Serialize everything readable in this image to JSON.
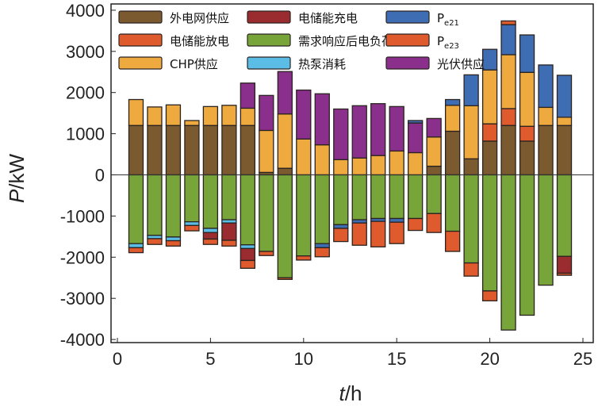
{
  "chart_data": {
    "type": "bar",
    "stacked": true,
    "xlabel": {
      "var": "t",
      "unit": "/h"
    },
    "ylabel": {
      "var": "P",
      "unit": "/kW"
    },
    "xlim": [
      0,
      25
    ],
    "ylim": [
      -4000,
      4000
    ],
    "xticks": [
      0,
      5,
      10,
      15,
      20,
      25
    ],
    "yticks": [
      -4000,
      -3000,
      -2000,
      -1000,
      0,
      1000,
      2000,
      3000,
      4000
    ],
    "grid": false,
    "legend_position": "top",
    "categories": [
      1,
      2,
      3,
      4,
      5,
      6,
      7,
      8,
      9,
      10,
      11,
      12,
      13,
      14,
      15,
      16,
      17,
      18,
      19,
      20,
      21,
      22,
      23,
      24
    ],
    "series": [
      {
        "name": "外电网供应",
        "color": "#7b5a2f",
        "values": [
          1200,
          1200,
          1200,
          1200,
          1200,
          1200,
          1200,
          60,
          160,
          0,
          0,
          0,
          0,
          0,
          0,
          0,
          210,
          1060,
          390,
          820,
          1200,
          820,
          1200,
          1200
        ]
      },
      {
        "name": "电储能放电",
        "color": "#df5a2c",
        "values": [
          0,
          0,
          0,
          0,
          0,
          0,
          0,
          0,
          0,
          0,
          0,
          0,
          0,
          0,
          0,
          0,
          0,
          0,
          0,
          420,
          410,
          360,
          0,
          0
        ]
      },
      {
        "name": "CHP供应",
        "color": "#eea93f",
        "values": [
          630,
          450,
          500,
          120,
          460,
          490,
          420,
          1020,
          1320,
          870,
          730,
          370,
          410,
          470,
          580,
          540,
          710,
          630,
          1290,
          1310,
          1310,
          1310,
          440,
          200
        ]
      },
      {
        "name": "光伏供应",
        "color": "#8b2f8c",
        "values": [
          0,
          0,
          0,
          0,
          0,
          0,
          610,
          850,
          1030,
          1190,
          1240,
          1230,
          1270,
          1260,
          1080,
          720,
          450,
          0,
          0,
          0,
          0,
          0,
          0,
          0
        ]
      },
      {
        "name": "电储能充电",
        "color": "#9a2b2e",
        "values": [
          0,
          0,
          0,
          0,
          -160,
          -420,
          -290,
          0,
          0,
          0,
          0,
          0,
          0,
          0,
          0,
          0,
          0,
          0,
          0,
          0,
          0,
          0,
          0,
          -410
        ]
      },
      {
        "name": "需求响应后电负荷",
        "color": "#78a53a",
        "values": [
          -1670,
          -1470,
          -1510,
          -1140,
          -1300,
          -1090,
          -1700,
          -1860,
          -2500,
          -1970,
          -1670,
          -1210,
          -1090,
          -1060,
          -1060,
          -1060,
          -940,
          -1370,
          -2140,
          -2820,
          -3770,
          -3410,
          -2680,
          -1980
        ]
      },
      {
        "name": "热泵消耗",
        "color": "#5bbde6",
        "values": [
          -100,
          -80,
          -90,
          -90,
          -100,
          -80,
          -90,
          0,
          0,
          0,
          0,
          0,
          0,
          0,
          0,
          0,
          0,
          0,
          0,
          0,
          0,
          0,
          0,
          0
        ]
      },
      {
        "name": "Pe21",
        "color": "#3f6db3",
        "values_positive": [
          0,
          0,
          0,
          0,
          0,
          0,
          0,
          0,
          0,
          0,
          0,
          0,
          0,
          0,
          0,
          60,
          0,
          140,
          750,
          500,
          730,
          910,
          1030,
          1020
        ],
        "values_negative": [
          0,
          0,
          0,
          0,
          0,
          0,
          0,
          0,
          0,
          0,
          -100,
          -90,
          -80,
          -70,
          -90,
          0,
          0,
          0,
          0,
          0,
          0,
          0,
          0,
          0
        ]
      },
      {
        "name": "Pe23",
        "color": "#df5a2c",
        "values_positive": [
          0,
          0,
          0,
          0,
          0,
          0,
          0,
          0,
          0,
          0,
          0,
          0,
          0,
          0,
          0,
          0,
          0,
          0,
          0,
          0,
          90,
          0,
          0,
          0
        ],
        "values_negative": [
          -120,
          -140,
          -130,
          -130,
          -130,
          -140,
          -190,
          -100,
          -40,
          -100,
          -220,
          -320,
          -540,
          -620,
          -520,
          -290,
          -460,
          -490,
          -320,
          -240,
          0,
          0,
          0,
          -50
        ]
      }
    ],
    "legend_order": [
      "外电网供应",
      "电储能充电",
      "Pe21",
      "电储能放电",
      "需求响应后电负荷",
      "Pe23",
      "CHP供应",
      "热泵消耗",
      "光伏供应"
    ]
  }
}
